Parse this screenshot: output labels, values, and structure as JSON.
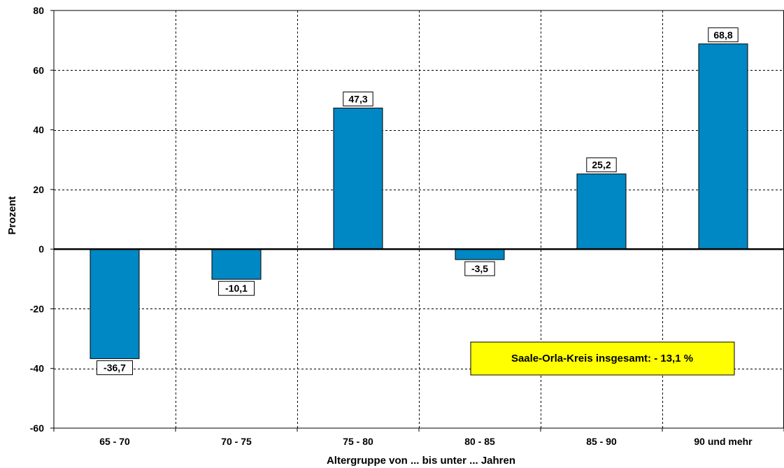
{
  "chart_data": {
    "type": "bar",
    "categories": [
      "65 - 70",
      "70 - 75",
      "75 - 80",
      "80 - 85",
      "85 - 90",
      "90 und mehr"
    ],
    "values": [
      -36.7,
      -10.1,
      47.3,
      -3.5,
      25.2,
      68.8
    ],
    "value_labels": [
      "-36,7",
      "-10,1",
      "47,3",
      "-3,5",
      "25,2",
      "68,8"
    ],
    "xlabel": "Altergruppe von ... bis unter ... Jahren",
    "ylabel": "Prozent",
    "ylim": [
      -60,
      80
    ],
    "yticks": [
      80,
      60,
      40,
      20,
      0,
      -20,
      -40,
      -60
    ],
    "grid": true,
    "bar_color": "#0088c4",
    "annotation": {
      "text": "Saale-Orla-Kreis insgesamt: - 13,1 %",
      "background": "#ffff00",
      "position": "lower-right"
    }
  }
}
